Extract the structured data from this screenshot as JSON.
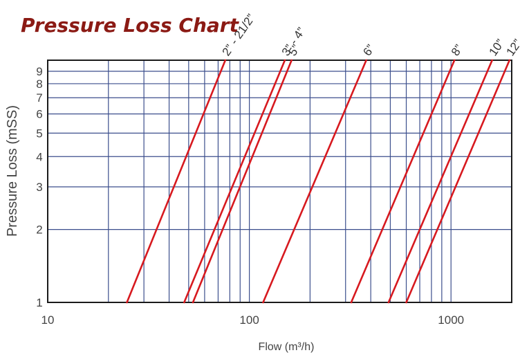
{
  "chart_data": {
    "type": "line",
    "title": "Pressure Loss Chart",
    "xlabel": "Flow  (m³/h)",
    "ylabel": "Pressure Loss (mSS)",
    "x_scale": "log",
    "y_scale": "log",
    "xlim": [
      10,
      2000
    ],
    "ylim": [
      1,
      10
    ],
    "grid": true,
    "x_tick_labels": [
      "10",
      "100",
      "1000"
    ],
    "y_tick_labels": [
      "1",
      "2",
      "3",
      "4",
      "5",
      "6",
      "7",
      "8",
      "9"
    ],
    "line_color": "#D7191F",
    "grid_color": "#3B4E8C",
    "series": [
      {
        "name": "2” - 21/2”",
        "points": [
          [
            24.7,
            1
          ],
          [
            76,
            10
          ]
        ]
      },
      {
        "name": "3” - 4”",
        "points": [
          [
            47.5,
            1
          ],
          [
            150,
            10
          ]
        ]
      },
      {
        "name": "5”",
        "points": [
          [
            52.5,
            1
          ],
          [
            162,
            10
          ]
        ]
      },
      {
        "name": "6”",
        "points": [
          [
            117,
            1
          ],
          [
            380,
            10
          ]
        ]
      },
      {
        "name": "8”",
        "points": [
          [
            320,
            1
          ],
          [
            1040,
            10
          ]
        ]
      },
      {
        "name": "10”",
        "points": [
          [
            490,
            1
          ],
          [
            1600,
            10
          ]
        ]
      },
      {
        "name": "12”",
        "points": [
          [
            600,
            1
          ],
          [
            1950,
            10
          ]
        ]
      }
    ]
  }
}
